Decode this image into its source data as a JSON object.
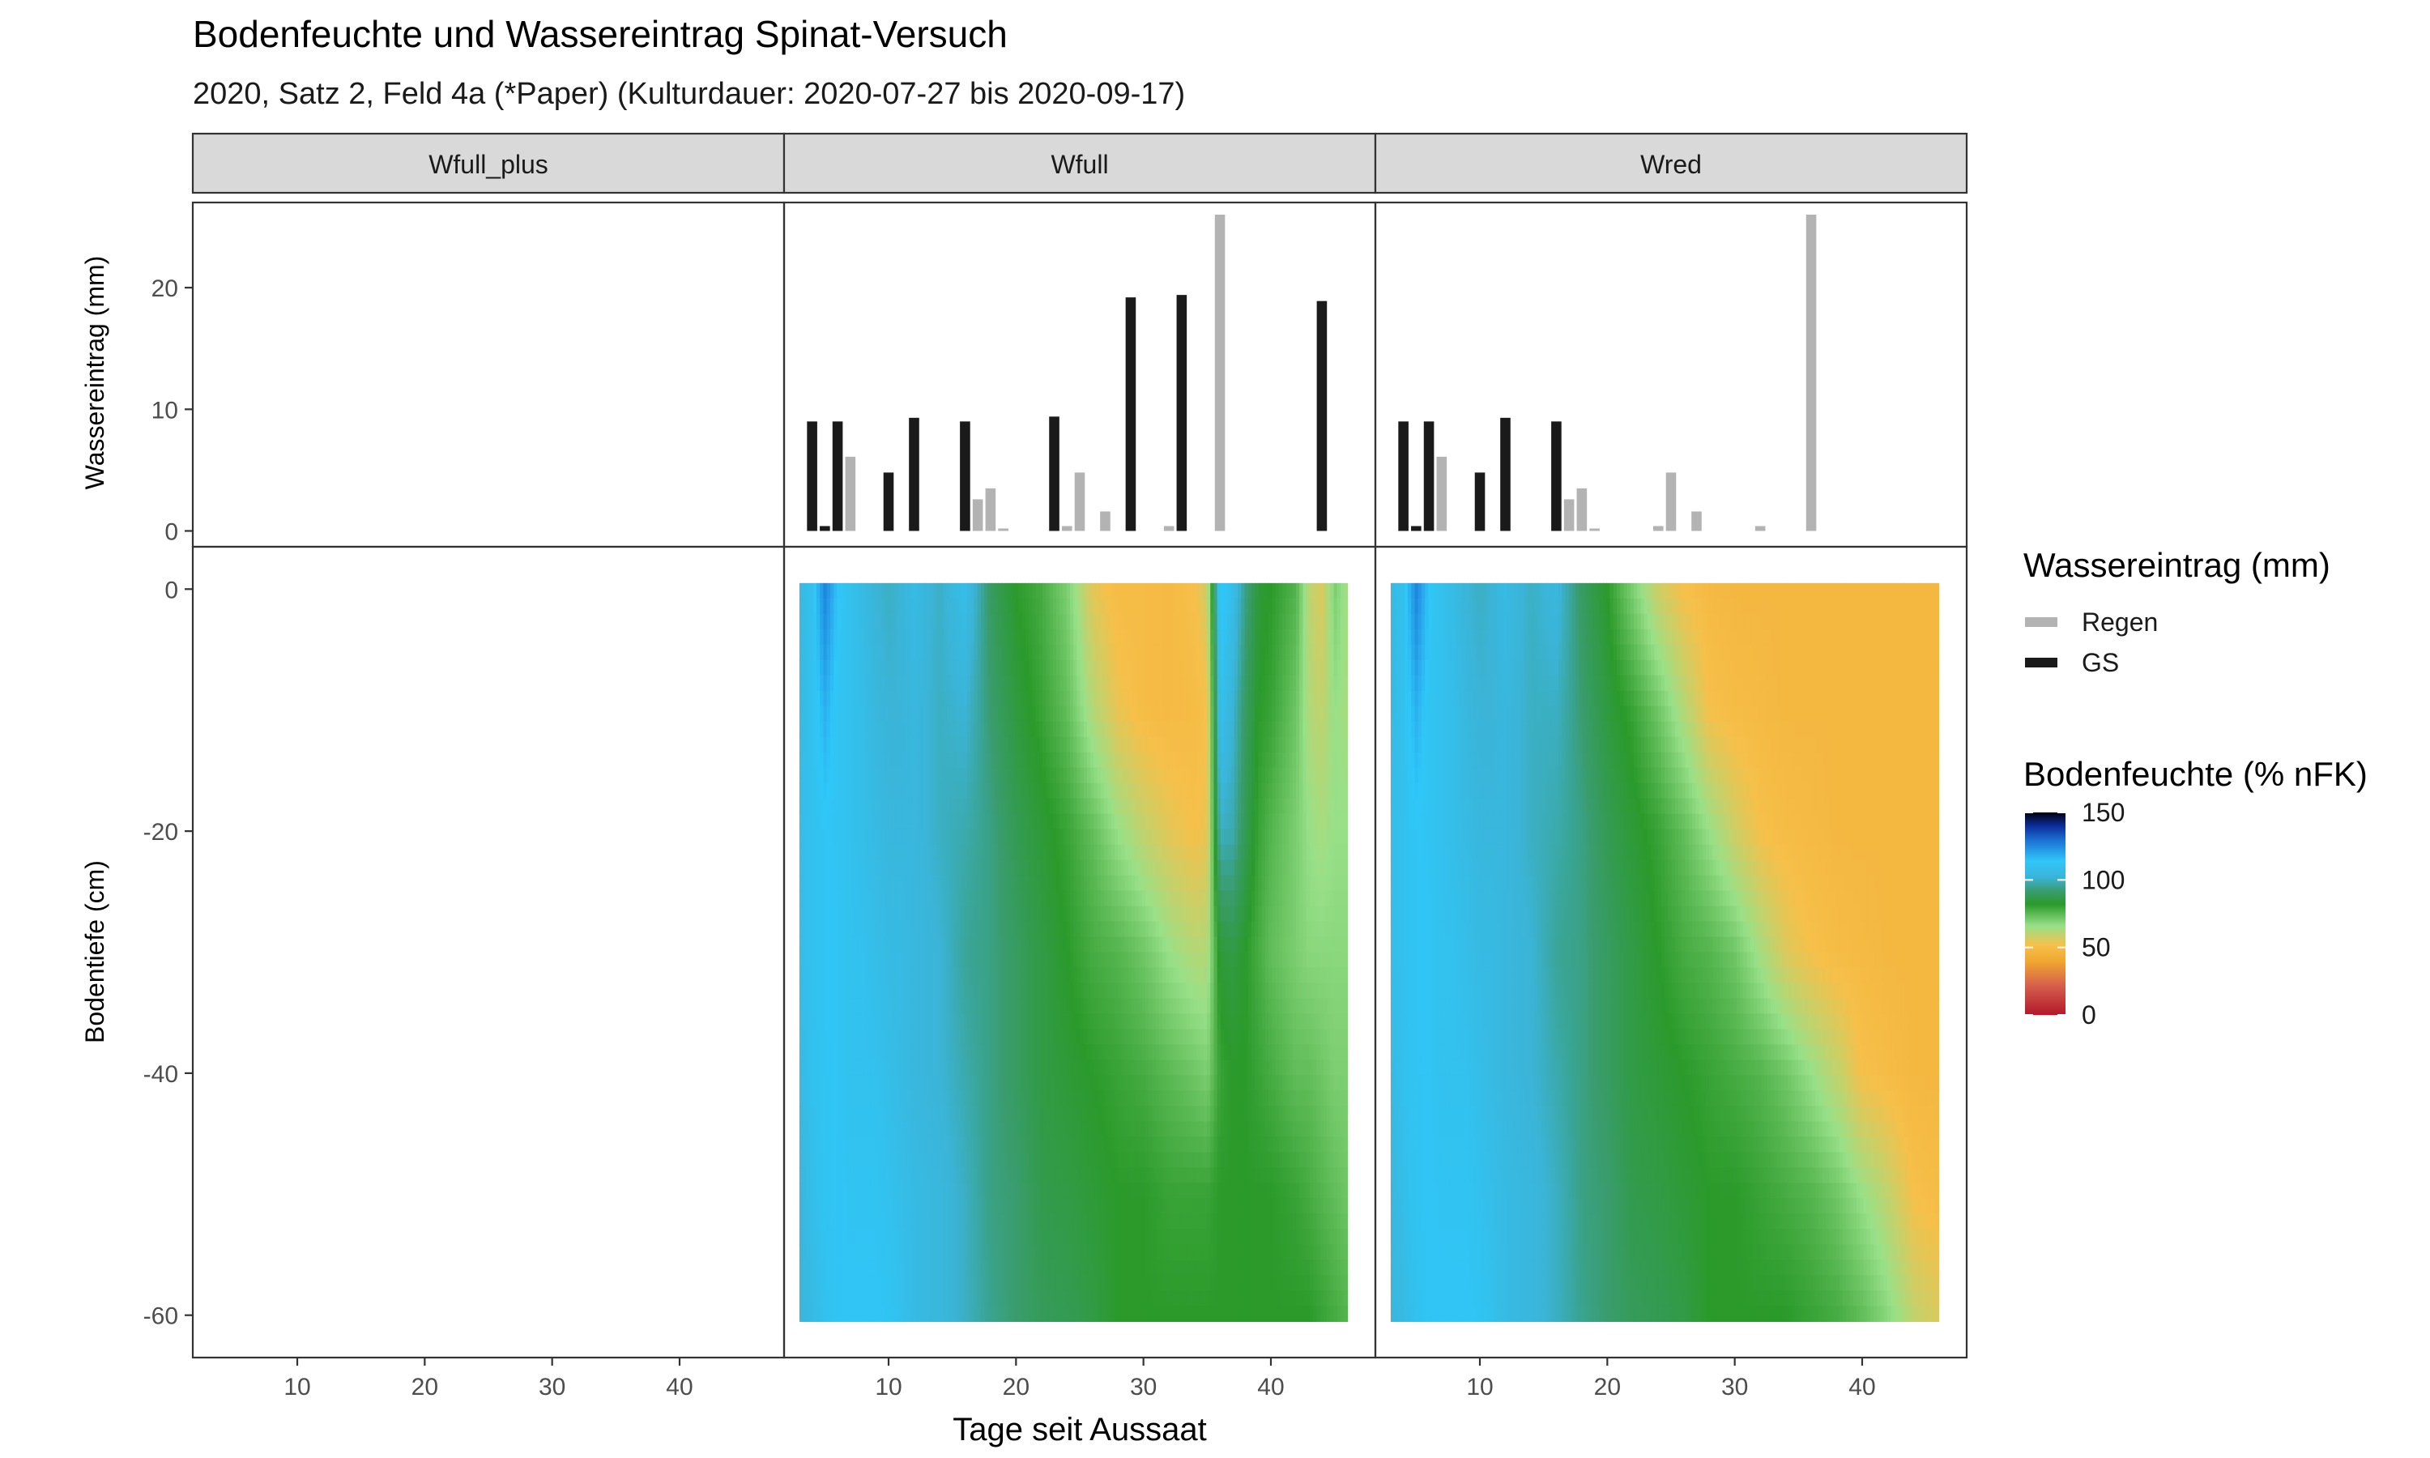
{
  "title": "Bodenfeuchte und Wassereintrag Spinat-Versuch",
  "subtitle": "2020, Satz 2, Feld 4a (*Paper) (Kulturdauer: 2020-07-27 bis 2020-09-17)",
  "chart_data": [
    {
      "type": "bar",
      "name": "wassereintrag",
      "ylabel": "Wassereintrag (mm)",
      "xlabel": "",
      "xlim": [
        1.8,
        48.2
      ],
      "ylim": [
        -1.3,
        27.0
      ],
      "yticks": [
        0,
        10,
        20
      ],
      "grid": false,
      "bar_width_days": 0.8,
      "facets": [
        "Wfull_plus",
        "Wfull",
        "Wred"
      ],
      "series": [
        {
          "name": "GS",
          "color": "#1a1a1a",
          "by_facet": {
            "Wfull_plus": [],
            "Wfull": [
              [
                4,
                9
              ],
              [
                5,
                0.4
              ],
              [
                6,
                9
              ],
              [
                10,
                4.8
              ],
              [
                12,
                9.3
              ],
              [
                16,
                9
              ],
              [
                23,
                9.4
              ],
              [
                29,
                19.2
              ],
              [
                33,
                19.4
              ],
              [
                44,
                18.9
              ]
            ],
            "Wred": [
              [
                4,
                9
              ],
              [
                5,
                0.4
              ],
              [
                6,
                9
              ],
              [
                10,
                4.8
              ],
              [
                12,
                9.3
              ],
              [
                16,
                9
              ]
            ]
          }
        },
        {
          "name": "Regen",
          "color": "#b3b3b3",
          "by_facet": {
            "Wfull_plus": [],
            "Wfull": [
              [
                7,
                6.1
              ],
              [
                17,
                2.6
              ],
              [
                18,
                3.5
              ],
              [
                19,
                0.2
              ],
              [
                24,
                0.4
              ],
              [
                25,
                4.8
              ],
              [
                27,
                1.6
              ],
              [
                32,
                0.4
              ],
              [
                36,
                26.0
              ]
            ],
            "Wred": [
              [
                7,
                6.1
              ],
              [
                17,
                2.6
              ],
              [
                18,
                3.5
              ],
              [
                19,
                0.2
              ],
              [
                24,
                0.4
              ],
              [
                25,
                4.8
              ],
              [
                27,
                1.6
              ],
              [
                32,
                0.4
              ],
              [
                36,
                26.0
              ]
            ]
          }
        }
      ]
    },
    {
      "type": "heatmap",
      "name": "bodenfeuchte",
      "xlabel": "Tage seit Aussaat",
      "ylabel": "Bodentiefe (cm)",
      "xlim": [
        1.8,
        48.2
      ],
      "ylim": [
        -63.5,
        3.5
      ],
      "xticks": [
        10,
        20,
        30,
        40
      ],
      "yticks": [
        0,
        -20,
        -40,
        -60
      ],
      "grid": false,
      "x_extent": [
        3,
        46
      ],
      "depth_extent": [
        -60.5,
        0.5
      ],
      "legend_title": "Bodenfeuchte (% nFK)",
      "scale_limits": [
        0,
        150
      ],
      "scale_ticks": [
        0,
        50,
        100,
        150
      ],
      "scale_colors": [
        {
          "v": 0,
          "color": "#b2182b"
        },
        {
          "v": 22,
          "color": "#d6604d"
        },
        {
          "v": 40,
          "color": "#f0a830"
        },
        {
          "v": 52,
          "color": "#f6c04a"
        },
        {
          "v": 66,
          "color": "#98e088"
        },
        {
          "v": 82,
          "color": "#2b9a2b"
        },
        {
          "v": 92,
          "color": "#3a9c6e"
        },
        {
          "v": 102,
          "color": "#3bb4d8"
        },
        {
          "v": 114,
          "color": "#2fc7f8"
        },
        {
          "v": 128,
          "color": "#1c7ad8"
        },
        {
          "v": 140,
          "color": "#0a2e9e"
        },
        {
          "v": 150,
          "color": "#000010"
        }
      ],
      "facets": {
        "Wfull_plus": null,
        "Wfull": {
          "description": "approximate moisture in % nFK by day and depth",
          "days": [
            3,
            4,
            5,
            6,
            7,
            8,
            9,
            10,
            11,
            12,
            14,
            16,
            18,
            20,
            22,
            24,
            26,
            28,
            30,
            32,
            34,
            35,
            36,
            37,
            38,
            39,
            40,
            42,
            43,
            44,
            45,
            46
          ],
          "depths": [
            0,
            -10,
            -20,
            -30,
            -40,
            -50,
            -60
          ],
          "values": [
            [
              106,
              106,
              108,
              108,
              106,
              104,
              104
            ],
            [
              110,
              110,
              110,
              110,
              110,
              108,
              106
            ],
            [
              126,
              118,
              113,
              113,
              112,
              112,
              110
            ],
            [
              114,
              112,
              112,
              113,
              113,
              113,
              113
            ],
            [
              110,
              110,
              110,
              110,
              110,
              112,
              113
            ],
            [
              106,
              108,
              108,
              110,
              110,
              112,
              113
            ],
            [
              102,
              104,
              106,
              108,
              110,
              112,
              113
            ],
            [
              100,
              102,
              104,
              106,
              108,
              110,
              112
            ],
            [
              102,
              102,
              104,
              106,
              106,
              108,
              110
            ],
            [
              106,
              104,
              104,
              104,
              104,
              106,
              106
            ],
            [
              100,
              100,
              100,
              102,
              102,
              104,
              104
            ],
            [
              108,
              102,
              98,
              96,
              98,
              100,
              100
            ],
            [
              90,
              92,
              94,
              94,
              94,
              94,
              95
            ],
            [
              82,
              85,
              88,
              90,
              90,
              92,
              92
            ],
            [
              78,
              80,
              84,
              86,
              86,
              87,
              89
            ],
            [
              70,
              74,
              80,
              82,
              84,
              86,
              88
            ],
            [
              55,
              62,
              74,
              78,
              82,
              84,
              86
            ],
            [
              50,
              54,
              66,
              76,
              80,
              82,
              82
            ],
            [
              50,
              50,
              60,
              72,
              78,
              82,
              82
            ],
            [
              49,
              49,
              55,
              66,
              75,
              80,
              82
            ],
            [
              52,
              50,
              52,
              62,
              72,
              80,
              82
            ],
            [
              58,
              52,
              54,
              62,
              70,
              80,
              82
            ],
            [
              116,
              110,
              100,
              84,
              80,
              82,
              82
            ],
            [
              108,
              102,
              98,
              86,
              82,
              82,
              82
            ],
            [
              94,
              90,
              88,
              82,
              82,
              82,
              82
            ],
            [
              84,
              82,
              80,
              78,
              80,
              82,
              82
            ],
            [
              82,
              80,
              76,
              74,
              78,
              82,
              82
            ],
            [
              76,
              72,
              70,
              70,
              74,
              80,
              82
            ],
            [
              60,
              62,
              66,
              68,
              74,
              78,
              82
            ],
            [
              56,
              60,
              64,
              68,
              72,
              76,
              80
            ],
            [
              70,
              66,
              66,
              68,
              70,
              74,
              78
            ],
            [
              64,
              64,
              66,
              68,
              70,
              72,
              76
            ]
          ]
        },
        "Wred": {
          "description": "approximate moisture in % nFK by day and depth",
          "days": [
            3,
            4,
            5,
            6,
            7,
            8,
            9,
            10,
            11,
            12,
            14,
            16,
            18,
            20,
            22,
            24,
            26,
            28,
            30,
            32,
            34,
            36,
            38,
            40,
            42,
            44,
            46
          ],
          "depths": [
            0,
            -10,
            -20,
            -30,
            -40,
            -50,
            -60
          ],
          "values": [
            [
              106,
              106,
              108,
              108,
              106,
              104,
              104
            ],
            [
              110,
              110,
              110,
              110,
              110,
              108,
              106
            ],
            [
              126,
              118,
              113,
              113,
              112,
              112,
              110
            ],
            [
              114,
              112,
              112,
              113,
              113,
              113,
              113
            ],
            [
              110,
              110,
              110,
              110,
              110,
              112,
              113
            ],
            [
              106,
              108,
              108,
              110,
              110,
              112,
              113
            ],
            [
              102,
              104,
              106,
              108,
              110,
              112,
              113
            ],
            [
              100,
              102,
              104,
              106,
              108,
              110,
              112
            ],
            [
              102,
              102,
              104,
              106,
              106,
              108,
              110
            ],
            [
              106,
              104,
              104,
              104,
              104,
              106,
              106
            ],
            [
              100,
              100,
              100,
              102,
              102,
              104,
              104
            ],
            [
              104,
              100,
              98,
              96,
              98,
              100,
              100
            ],
            [
              90,
              92,
              94,
              94,
              94,
              94,
              95
            ],
            [
              82,
              85,
              88,
              90,
              90,
              92,
              92
            ],
            [
              70,
              80,
              84,
              86,
              86,
              87,
              89
            ],
            [
              58,
              72,
              80,
              82,
              84,
              86,
              88
            ],
            [
              52,
              62,
              74,
              78,
              82,
              84,
              86
            ],
            [
              49,
              52,
              66,
              76,
              80,
              82,
              82
            ],
            [
              48,
              50,
              58,
              72,
              78,
              82,
              82
            ],
            [
              48,
              49,
              52,
              64,
              76,
              80,
              82
            ],
            [
              48,
              48,
              50,
              56,
              72,
              78,
              82
            ],
            [
              48,
              48,
              49,
              52,
              66,
              76,
              80
            ],
            [
              48,
              48,
              48,
              50,
              60,
              72,
              78
            ],
            [
              48,
              48,
              48,
              49,
              52,
              66,
              74
            ],
            [
              48,
              48,
              48,
              48,
              50,
              60,
              68
            ],
            [
              48,
              48,
              48,
              48,
              48,
              52,
              60
            ],
            [
              48,
              48,
              48,
              48,
              48,
              50,
              56
            ]
          ]
        }
      }
    }
  ],
  "legend": {
    "water": {
      "title": "Wassereintrag (mm)",
      "items": [
        {
          "label": "Regen",
          "color": "#b3b3b3"
        },
        {
          "label": "GS",
          "color": "#1a1a1a"
        }
      ]
    },
    "moisture": {
      "title": "Bodenfeuchte (% nFK)",
      "ticks": [
        "150",
        "100",
        "50",
        "0"
      ]
    }
  }
}
